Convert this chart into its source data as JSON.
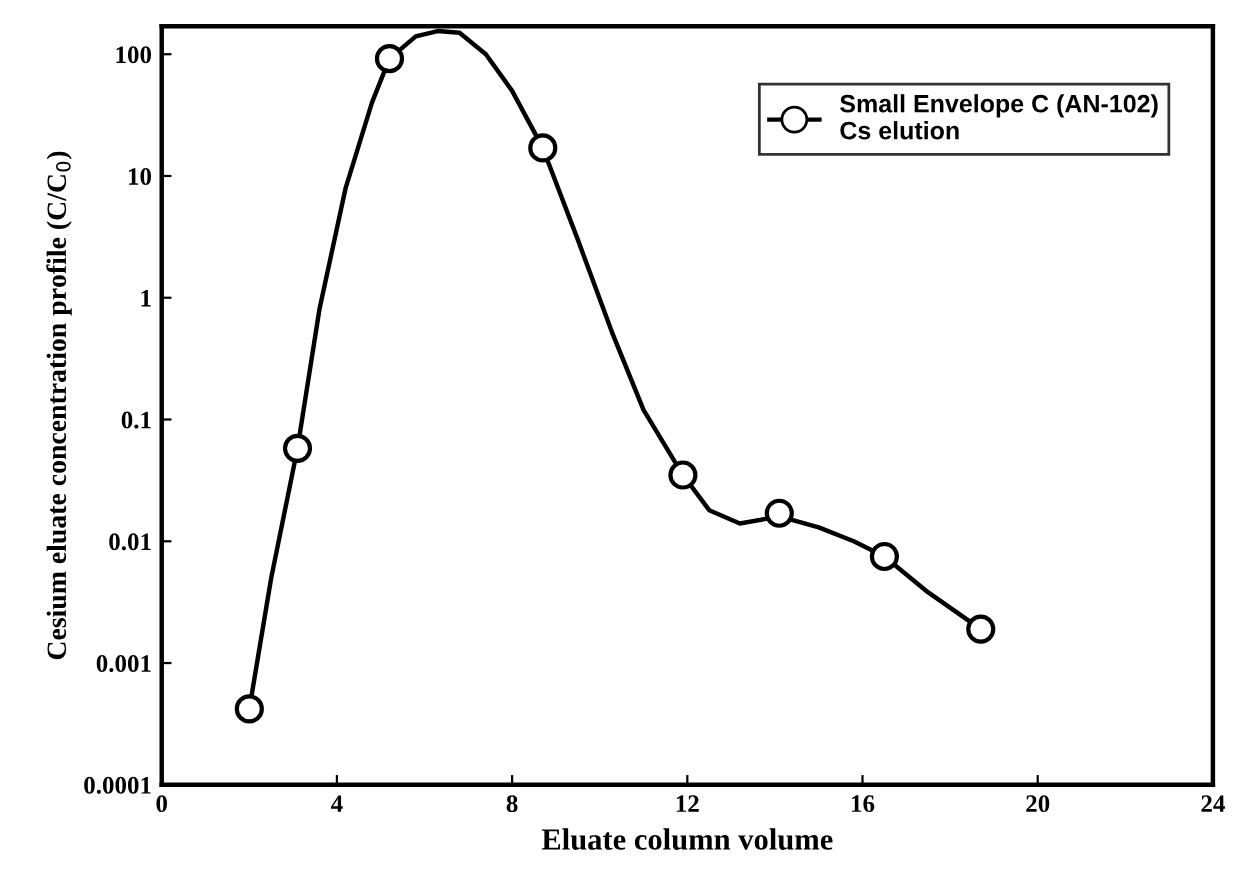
{
  "chart_data": {
    "type": "scatter",
    "xlabel": "Eluate column volume",
    "ylabel": "Cesium eluate concentration profile (C/C$_{0}$)",
    "series": [
      {
        "marker": "circle",
        "name": "Small Envelope C (AN-102)\nCs elution",
        "color": "#000000",
        "x": [
          2.0,
          3.1,
          5.2,
          8.7,
          11.9,
          14.1,
          16.5,
          18.7
        ],
        "values": [
          0.00042,
          0.058,
          92,
          17,
          0.035,
          0.017,
          0.0075,
          0.0019
        ]
      },
      {
        "type": "line",
        "color": "#000000",
        "x": [
          2.0,
          2.5,
          3.1,
          3.6,
          4.2,
          4.8,
          5.2,
          5.8,
          6.3,
          6.8,
          7.4,
          8.0,
          8.7,
          9.5,
          10.3,
          11.0,
          11.9,
          12.5,
          13.2,
          14.1,
          15.0,
          15.8,
          16.5,
          17.5,
          18.7
        ],
        "values": [
          0.00042,
          0.005,
          0.058,
          0.8,
          8,
          40,
          92,
          140,
          155,
          150,
          100,
          50,
          17,
          3,
          0.5,
          0.12,
          0.035,
          0.018,
          0.014,
          0.016,
          0.013,
          0.01,
          0.0075,
          0.0038,
          0.0019
        ]
      }
    ],
    "log": "y",
    "xlim": [
      0,
      24
    ],
    "xticks": [
      0,
      4,
      8,
      12,
      16,
      20,
      24
    ],
    "ylim": [
      0.0001,
      170
    ],
    "yticks": [
      0.0001,
      0.001,
      0.01,
      0.1,
      1,
      10,
      100
    ],
    "line_style": "solid",
    "legend": "top right"
  }
}
